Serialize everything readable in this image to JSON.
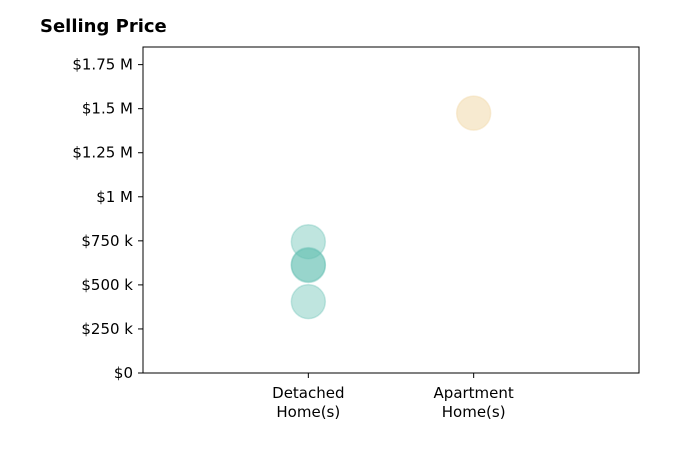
{
  "chart_data": {
    "type": "scatter",
    "title": "Selling Price",
    "xlabel": "",
    "ylabel": "",
    "categories": [
      "Detached\nHome(s)",
      "Apartment\nHome(s)"
    ],
    "xlim": [
      -1,
      2
    ],
    "ylim": [
      0,
      1850000
    ],
    "y_ticks": [
      0,
      250000,
      500000,
      750000,
      1000000,
      1250000,
      1500000,
      1750000
    ],
    "y_tick_labels": [
      "$0",
      "$250 k",
      "$500 k",
      "$750 k",
      "$1 M",
      "$1.25 M",
      "$1.5 M",
      "$1.75 M"
    ],
    "grid": false,
    "series": [
      {
        "color": "#5fbfb0",
        "opacity": 0.4,
        "points": [
          {
            "category": 0,
            "value": 745000
          },
          {
            "category": 0,
            "value": 615000
          },
          {
            "category": 0,
            "value": 610000
          },
          {
            "category": 0,
            "value": 405000
          }
        ]
      },
      {
        "color": "#f2dcb0",
        "opacity": 0.6,
        "points": [
          {
            "category": 1,
            "value": 1475000
          }
        ]
      }
    ]
  }
}
